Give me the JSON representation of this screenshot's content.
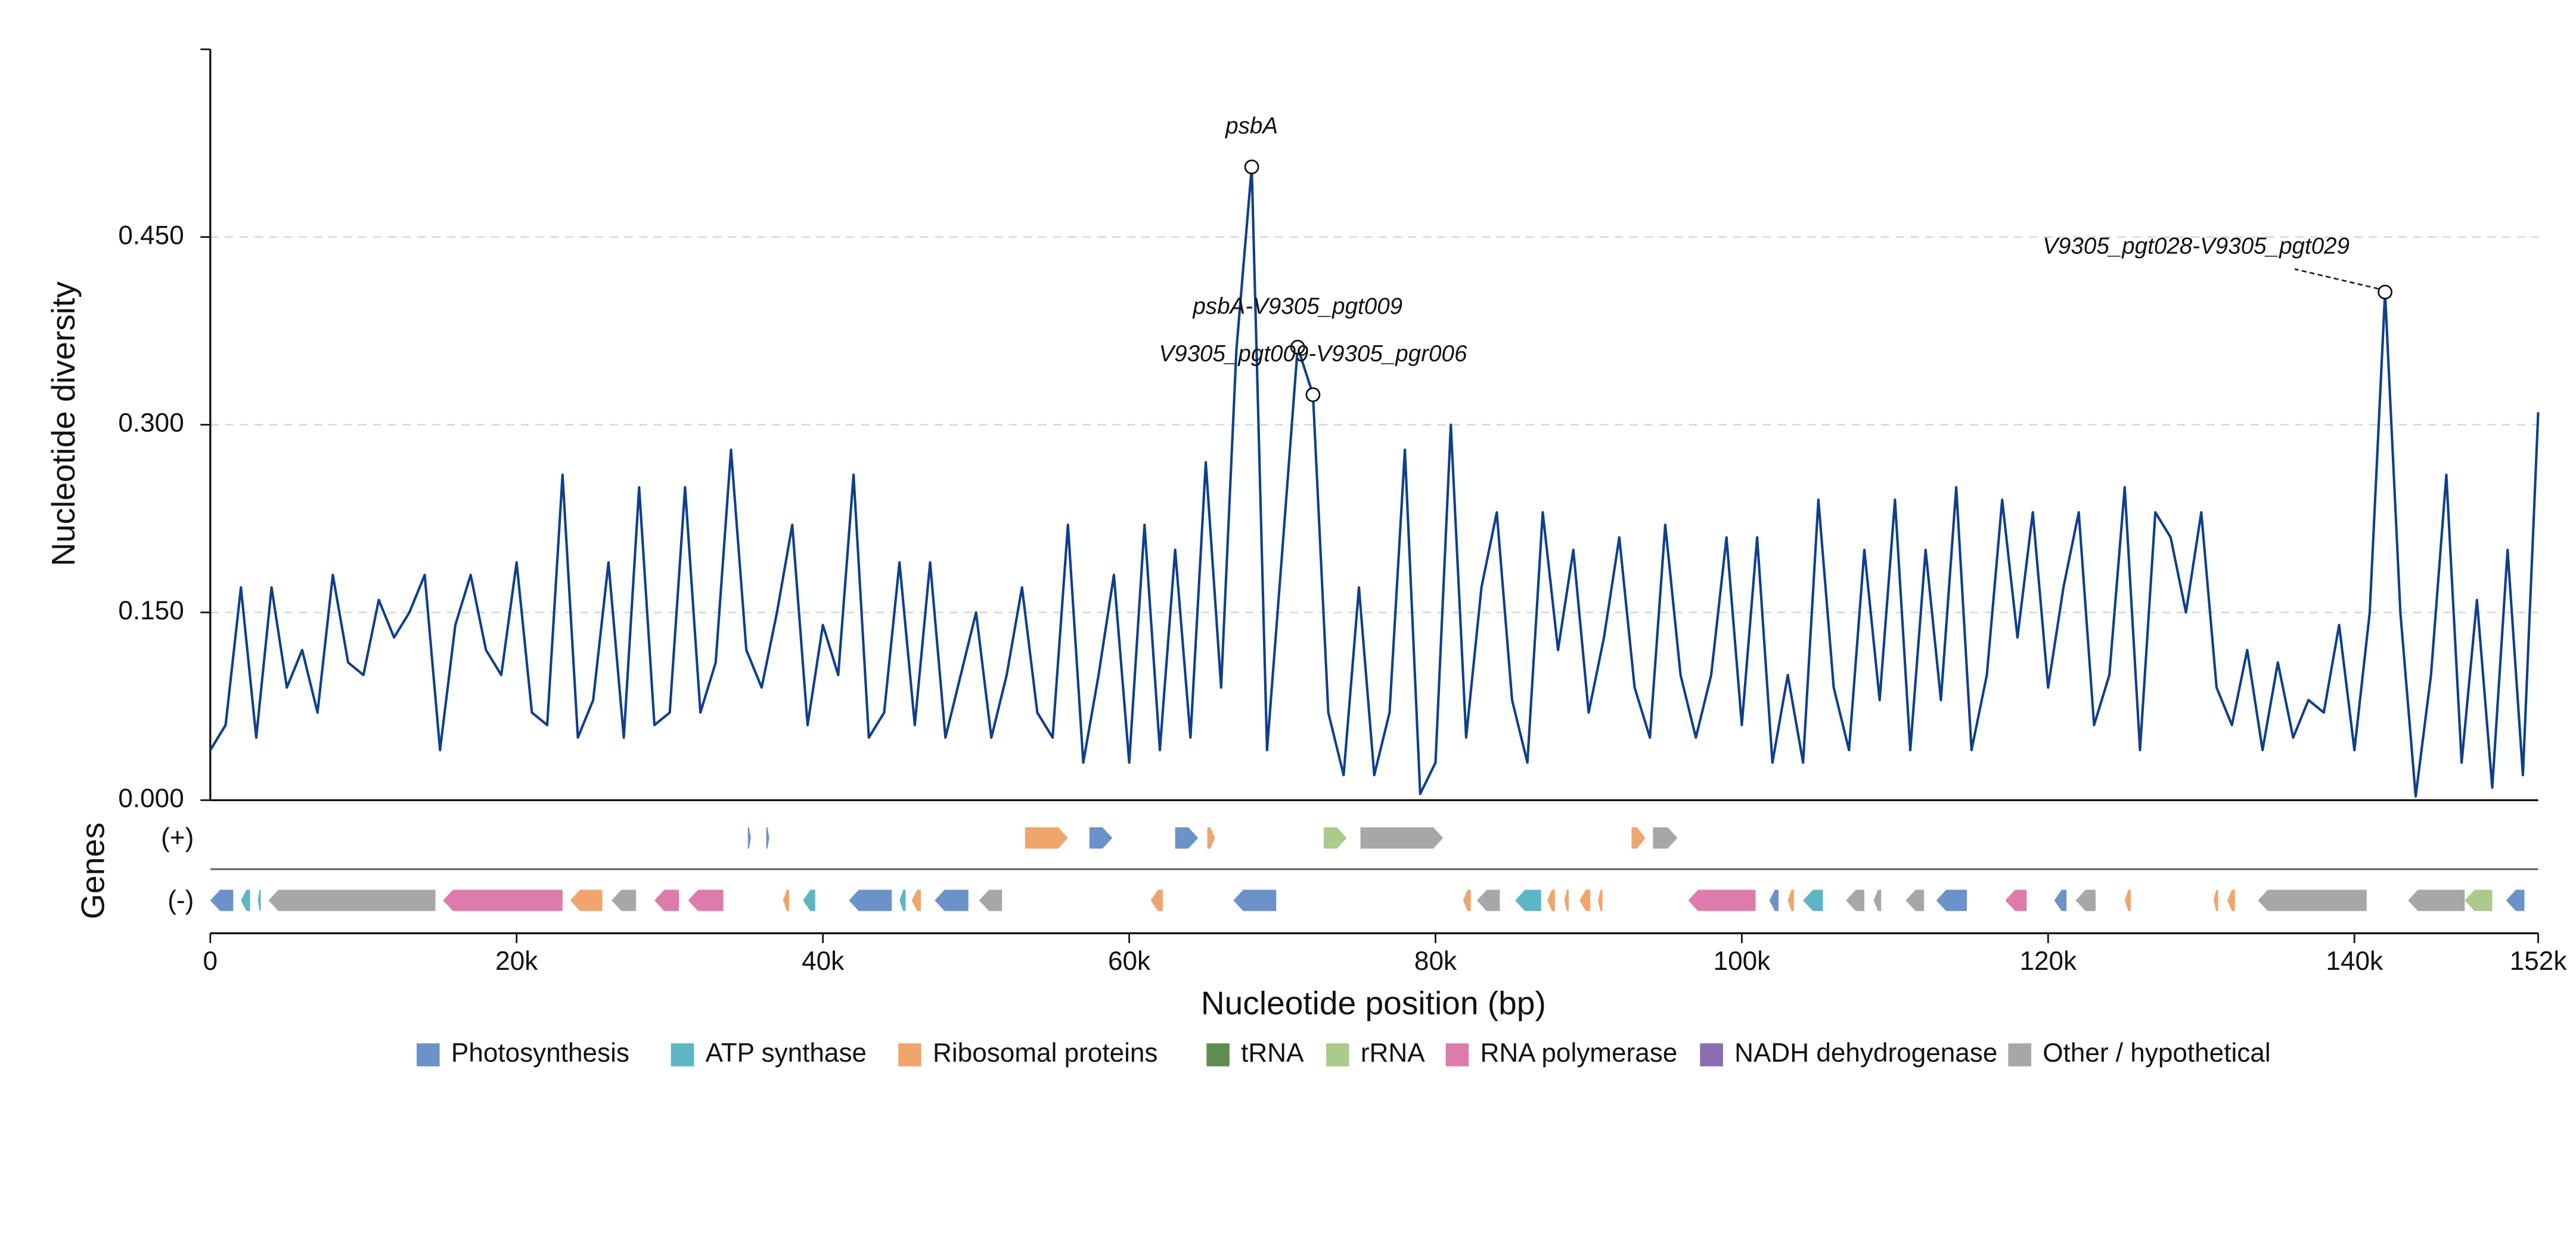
{
  "chart_data": {
    "type": "line",
    "ylabel": "Nucleotide diversity",
    "xlabel": "Nucleotide position (bp)",
    "gene_axis_label": "Genes",
    "plus_label": "(+)",
    "minus_label": "(-)",
    "line_color": "#0e3f8c",
    "grid": true,
    "xlim": [
      0,
      152000
    ],
    "ylim": [
      0,
      0.6
    ],
    "xticks": [
      {
        "value": 0,
        "label": "0"
      },
      {
        "value": 20000,
        "label": "20k"
      },
      {
        "value": 40000,
        "label": "40k"
      },
      {
        "value": 60000,
        "label": "60k"
      },
      {
        "value": 80000,
        "label": "80k"
      },
      {
        "value": 100000,
        "label": "100k"
      },
      {
        "value": 120000,
        "label": "120k"
      },
      {
        "value": 140000,
        "label": "140k"
      },
      {
        "value": 152000,
        "label": "152k"
      }
    ],
    "yticks": [
      {
        "value": 0,
        "label": "0.000"
      },
      {
        "value": 0.15,
        "label": "0.150"
      },
      {
        "value": 0.3,
        "label": "0.300"
      },
      {
        "value": 0.45,
        "label": "0.450"
      }
    ],
    "x": [
      0,
      1000,
      2000,
      3000,
      4000,
      5000,
      6000,
      7000,
      8000,
      9000,
      10000,
      11000,
      12000,
      13000,
      14000,
      15000,
      16000,
      17000,
      18000,
      19000,
      20000,
      21000,
      22000,
      23000,
      24000,
      25000,
      26000,
      27000,
      28000,
      29000,
      30000,
      31000,
      32000,
      33000,
      34000,
      35000,
      36000,
      37000,
      38000,
      39000,
      40000,
      41000,
      42000,
      43000,
      44000,
      45000,
      46000,
      47000,
      48000,
      49000,
      50000,
      51000,
      52000,
      53000,
      54000,
      55000,
      56000,
      57000,
      58000,
      59000,
      60000,
      61000,
      62000,
      63000,
      64000,
      65000,
      66000,
      67000,
      68000,
      69000,
      70000,
      71000,
      72000,
      73000,
      74000,
      75000,
      76000,
      77000,
      78000,
      79000,
      80000,
      81000,
      82000,
      83000,
      84000,
      85000,
      86000,
      87000,
      88000,
      89000,
      90000,
      91000,
      92000,
      93000,
      94000,
      95000,
      96000,
      97000,
      98000,
      99000,
      100000,
      101000,
      102000,
      103000,
      104000,
      105000,
      106000,
      107000,
      108000,
      109000,
      110000,
      111000,
      112000,
      113000,
      114000,
      115000,
      116000,
      117000,
      118000,
      119000,
      120000,
      121000,
      122000,
      123000,
      124000,
      125000,
      126000,
      127000,
      128000,
      129000,
      130000,
      131000,
      132000,
      133000,
      134000,
      135000,
      136000,
      137000,
      138000,
      139000,
      140000,
      141000,
      142000,
      143000,
      144000,
      145000,
      146000,
      147000,
      148000,
      149000,
      150000,
      151000,
      152000
    ],
    "values": [
      0.04,
      0.06,
      0.17,
      0.05,
      0.17,
      0.09,
      0.12,
      0.07,
      0.18,
      0.11,
      0.1,
      0.16,
      0.13,
      0.15,
      0.18,
      0.04,
      0.14,
      0.18,
      0.12,
      0.1,
      0.19,
      0.07,
      0.06,
      0.26,
      0.05,
      0.08,
      0.19,
      0.05,
      0.25,
      0.06,
      0.07,
      0.25,
      0.07,
      0.11,
      0.28,
      0.12,
      0.09,
      0.15,
      0.22,
      0.06,
      0.14,
      0.1,
      0.26,
      0.05,
      0.07,
      0.19,
      0.06,
      0.19,
      0.05,
      0.1,
      0.15,
      0.05,
      0.1,
      0.17,
      0.07,
      0.05,
      0.22,
      0.03,
      0.1,
      0.18,
      0.03,
      0.22,
      0.04,
      0.2,
      0.05,
      0.27,
      0.09,
      0.36,
      0.506,
      0.04,
      0.2,
      0.362,
      0.324,
      0.07,
      0.02,
      0.17,
      0.02,
      0.07,
      0.28,
      0.005,
      0.03,
      0.3,
      0.05,
      0.17,
      0.23,
      0.08,
      0.03,
      0.23,
      0.12,
      0.2,
      0.07,
      0.13,
      0.21,
      0.09,
      0.05,
      0.22,
      0.1,
      0.05,
      0.1,
      0.21,
      0.06,
      0.21,
      0.03,
      0.1,
      0.03,
      0.24,
      0.09,
      0.04,
      0.2,
      0.08,
      0.24,
      0.04,
      0.2,
      0.08,
      0.25,
      0.04,
      0.1,
      0.24,
      0.13,
      0.23,
      0.09,
      0.17,
      0.23,
      0.06,
      0.1,
      0.25,
      0.04,
      0.23,
      0.21,
      0.15,
      0.23,
      0.09,
      0.06,
      0.12,
      0.04,
      0.11,
      0.05,
      0.08,
      0.07,
      0.14,
      0.04,
      0.15,
      0.406,
      0.15,
      0.003,
      0.1,
      0.26,
      0.03,
      0.16,
      0.01,
      0.2,
      0.02,
      0.31
    ],
    "annotations": [
      {
        "text": "psbA",
        "x": 68000,
        "y": 0.506
      },
      {
        "text": "psbA-V9305_pgt009",
        "x": 71000,
        "y": 0.362
      },
      {
        "text": "V9305_pgt009-V9305_pgr006",
        "x": 72000,
        "y": 0.324
      },
      {
        "text": "V9305_pgt028-V9305_pgt029",
        "x": 142000,
        "y": 0.406
      }
    ],
    "categories": [
      {
        "name": "Photosynthesis",
        "color": "#6b93c9"
      },
      {
        "name": "ATP synthase",
        "color": "#5cb6c6"
      },
      {
        "name": "Ribosomal proteins",
        "color": "#f0a56c"
      },
      {
        "name": "tRNA",
        "color": "#5e8e4f"
      },
      {
        "name": "rRNA",
        "color": "#abca8b"
      },
      {
        "name": "RNA polymerase",
        "color": "#dd7cab"
      },
      {
        "name": "NADH dehydrogenase",
        "color": "#8a6db3"
      },
      {
        "name": "Other / hypothetical",
        "color": "#a7a7a7"
      }
    ],
    "genes": [
      {
        "start": 0,
        "end": 1500,
        "strand": "-",
        "category": "Photosynthesis"
      },
      {
        "start": 2000,
        "end": 2600,
        "strand": "-",
        "category": "ATP synthase"
      },
      {
        "start": 3100,
        "end": 3300,
        "strand": "-",
        "category": "ATP synthase"
      },
      {
        "start": 3800,
        "end": 14700,
        "strand": "-",
        "category": "Other / hypothetical"
      },
      {
        "start": 15200,
        "end": 23000,
        "strand": "-",
        "category": "RNA polymerase"
      },
      {
        "start": 23500,
        "end": 25600,
        "strand": "-",
        "category": "Ribosomal proteins"
      },
      {
        "start": 26200,
        "end": 27800,
        "strand": "-",
        "category": "Other / hypothetical"
      },
      {
        "start": 29000,
        "end": 30600,
        "strand": "-",
        "category": "RNA polymerase"
      },
      {
        "start": 31200,
        "end": 33500,
        "strand": "-",
        "category": "RNA polymerase"
      },
      {
        "start": 37400,
        "end": 37800,
        "strand": "-",
        "category": "Ribosomal proteins"
      },
      {
        "start": 38700,
        "end": 39500,
        "strand": "-",
        "category": "ATP synthase"
      },
      {
        "start": 41700,
        "end": 44500,
        "strand": "-",
        "category": "Photosynthesis"
      },
      {
        "start": 45000,
        "end": 45400,
        "strand": "-",
        "category": "ATP synthase"
      },
      {
        "start": 45800,
        "end": 46400,
        "strand": "-",
        "category": "Ribosomal proteins"
      },
      {
        "start": 47300,
        "end": 49500,
        "strand": "-",
        "category": "Photosynthesis"
      },
      {
        "start": 50200,
        "end": 51700,
        "strand": "-",
        "category": "Other / hypothetical"
      },
      {
        "start": 61400,
        "end": 62200,
        "strand": "-",
        "category": "Ribosomal proteins"
      },
      {
        "start": 66800,
        "end": 69600,
        "strand": "-",
        "category": "Photosynthesis"
      },
      {
        "start": 81800,
        "end": 82300,
        "strand": "-",
        "category": "Ribosomal proteins"
      },
      {
        "start": 82700,
        "end": 84200,
        "strand": "-",
        "category": "Other / hypothetical"
      },
      {
        "start": 85200,
        "end": 86900,
        "strand": "-",
        "category": "ATP synthase"
      },
      {
        "start": 87300,
        "end": 87800,
        "strand": "-",
        "category": "Ribosomal proteins"
      },
      {
        "start": 88400,
        "end": 88700,
        "strand": "-",
        "category": "Ribosomal proteins"
      },
      {
        "start": 89400,
        "end": 90100,
        "strand": "-",
        "category": "Ribosomal proteins"
      },
      {
        "start": 90600,
        "end": 90900,
        "strand": "-",
        "category": "Ribosomal proteins"
      },
      {
        "start": 96500,
        "end": 100900,
        "strand": "-",
        "category": "RNA polymerase"
      },
      {
        "start": 101800,
        "end": 102400,
        "strand": "-",
        "category": "Photosynthesis"
      },
      {
        "start": 103000,
        "end": 103400,
        "strand": "-",
        "category": "Ribosomal proteins"
      },
      {
        "start": 104000,
        "end": 105300,
        "strand": "-",
        "category": "ATP synthase"
      },
      {
        "start": 106800,
        "end": 108000,
        "strand": "-",
        "category": "Other / hypothetical"
      },
      {
        "start": 108600,
        "end": 109100,
        "strand": "-",
        "category": "Other / hypothetical"
      },
      {
        "start": 110700,
        "end": 111900,
        "strand": "-",
        "category": "Other / hypothetical"
      },
      {
        "start": 112700,
        "end": 114700,
        "strand": "-",
        "category": "Photosynthesis"
      },
      {
        "start": 117200,
        "end": 118600,
        "strand": "-",
        "category": "RNA polymerase"
      },
      {
        "start": 120400,
        "end": 121200,
        "strand": "-",
        "category": "Photosynthesis"
      },
      {
        "start": 121800,
        "end": 123100,
        "strand": "-",
        "category": "Other / hypothetical"
      },
      {
        "start": 125000,
        "end": 125400,
        "strand": "-",
        "category": "Ribosomal proteins"
      },
      {
        "start": 130800,
        "end": 131100,
        "strand": "-",
        "category": "Ribosomal proteins"
      },
      {
        "start": 131700,
        "end": 132200,
        "strand": "-",
        "category": "Ribosomal proteins"
      },
      {
        "start": 133700,
        "end": 140800,
        "strand": "-",
        "category": "Other / hypothetical"
      },
      {
        "start": 143500,
        "end": 147200,
        "strand": "-",
        "category": "Other / hypothetical"
      },
      {
        "start": 147200,
        "end": 149000,
        "strand": "-",
        "category": "rRNA"
      },
      {
        "start": 149900,
        "end": 151100,
        "strand": "-",
        "category": "Photosynthesis"
      },
      {
        "start": 35100,
        "end": 35300,
        "strand": "+",
        "category": "Photosynthesis"
      },
      {
        "start": 36300,
        "end": 36500,
        "strand": "+",
        "category": "Photosynthesis"
      },
      {
        "start": 53200,
        "end": 56000,
        "strand": "+",
        "category": "Ribosomal proteins"
      },
      {
        "start": 57400,
        "end": 58900,
        "strand": "+",
        "category": "Photosynthesis"
      },
      {
        "start": 63000,
        "end": 64500,
        "strand": "+",
        "category": "Photosynthesis"
      },
      {
        "start": 65100,
        "end": 65600,
        "strand": "+",
        "category": "Ribosomal proteins"
      },
      {
        "start": 72700,
        "end": 74200,
        "strand": "+",
        "category": "rRNA"
      },
      {
        "start": 75100,
        "end": 80500,
        "strand": "+",
        "category": "Other / hypothetical"
      },
      {
        "start": 92800,
        "end": 93700,
        "strand": "+",
        "category": "Ribosomal proteins"
      },
      {
        "start": 94200,
        "end": 95800,
        "strand": "+",
        "category": "Other / hypothetical"
      }
    ]
  }
}
